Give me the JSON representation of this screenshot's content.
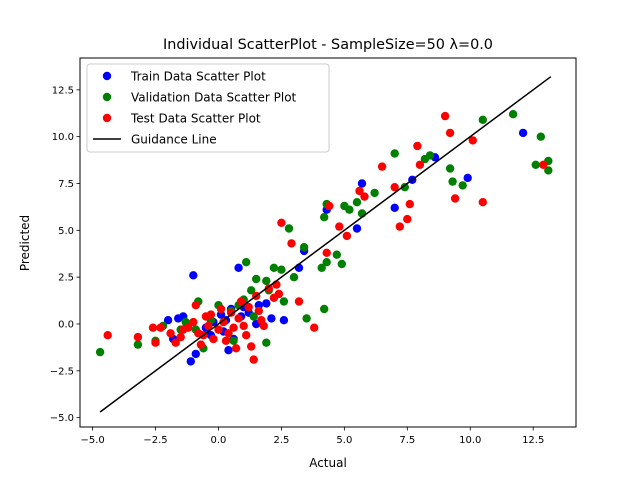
{
  "chart_data": {
    "type": "scatter",
    "title": "Individual ScatterPlot - SampleSize=50 λ=0.0",
    "xlabel": "Actual",
    "ylabel": "Predicted",
    "xlim": [
      -5.5,
      14.2
    ],
    "ylim": [
      -5.5,
      14.2
    ],
    "xticks": [
      -5.0,
      -2.5,
      0.0,
      2.5,
      5.0,
      7.5,
      10.0,
      12.5
    ],
    "yticks": [
      -5.0,
      -2.5,
      0.0,
      2.5,
      5.0,
      7.5,
      10.0,
      12.5
    ],
    "xtick_labels": [
      "−5.0",
      "−2.5",
      "0.0",
      "2.5",
      "5.0",
      "7.5",
      "10.0",
      "12.5"
    ],
    "ytick_labels": [
      "−5.0",
      "−2.5",
      "0.0",
      "2.5",
      "5.0",
      "7.5",
      "10.0",
      "12.5"
    ],
    "grid": false,
    "legend_position": "top-left",
    "series": [
      {
        "name": "Train Data Scatter Plot",
        "color": "#0000ff",
        "kind": "scatter",
        "points": [
          [
            -1.0,
            2.6
          ],
          [
            -1.1,
            -2.0
          ],
          [
            -0.9,
            -1.6
          ],
          [
            -1.4,
            0.4
          ],
          [
            -1.6,
            0.3
          ],
          [
            -1.8,
            -0.8
          ],
          [
            -0.3,
            -0.6
          ],
          [
            0.2,
            -0.4
          ],
          [
            0.4,
            -1.4
          ],
          [
            0.6,
            -0.8
          ],
          [
            0.9,
            0.4
          ],
          [
            0.5,
            0.8
          ],
          [
            1.6,
            1.0
          ],
          [
            1.0,
            0.9
          ],
          [
            0.8,
            3.0
          ],
          [
            1.5,
            0.0
          ],
          [
            2.1,
            0.3
          ],
          [
            2.6,
            0.2
          ],
          [
            3.2,
            3.0
          ],
          [
            3.4,
            3.9
          ],
          [
            4.3,
            6.1
          ],
          [
            5.5,
            5.1
          ],
          [
            5.7,
            7.5
          ],
          [
            7.0,
            6.2
          ],
          [
            7.7,
            7.7
          ],
          [
            8.6,
            8.9
          ],
          [
            9.9,
            7.8
          ],
          [
            12.1,
            10.2
          ],
          [
            -0.2,
            0.1
          ],
          [
            0.1,
            0.5
          ],
          [
            0.3,
            0.2
          ],
          [
            1.2,
            0.6
          ],
          [
            -0.5,
            -0.2
          ],
          [
            1.9,
            1.1
          ],
          [
            -2.0,
            0.2
          ]
        ]
      },
      {
        "name": "Validation Data Scatter Plot",
        "color": "#008000",
        "kind": "scatter",
        "points": [
          [
            -4.7,
            -1.5
          ],
          [
            -3.2,
            -1.1
          ],
          [
            -2.5,
            -0.9
          ],
          [
            -2.2,
            -0.1
          ],
          [
            -1.5,
            -0.3
          ],
          [
            -1.3,
            0.1
          ],
          [
            -0.6,
            -1.3
          ],
          [
            -0.3,
            0.2
          ],
          [
            0.0,
            1.0
          ],
          [
            -0.8,
            1.2
          ],
          [
            0.5,
            0.7
          ],
          [
            0.8,
            1.0
          ],
          [
            1.0,
            1.3
          ],
          [
            1.1,
            3.3
          ],
          [
            1.3,
            1.8
          ],
          [
            1.5,
            2.4
          ],
          [
            1.9,
            2.3
          ],
          [
            2.2,
            3.0
          ],
          [
            2.5,
            2.9
          ],
          [
            2.6,
            1.2
          ],
          [
            2.8,
            5.1
          ],
          [
            3.0,
            2.5
          ],
          [
            3.4,
            4.1
          ],
          [
            3.5,
            0.3
          ],
          [
            4.1,
            3.0
          ],
          [
            4.3,
            3.3
          ],
          [
            4.2,
            5.7
          ],
          [
            4.3,
            6.4
          ],
          [
            4.7,
            3.7
          ],
          [
            4.9,
            3.2
          ],
          [
            5.0,
            6.3
          ],
          [
            5.2,
            6.1
          ],
          [
            5.5,
            6.5
          ],
          [
            5.7,
            5.9
          ],
          [
            6.2,
            7.0
          ],
          [
            7.0,
            9.1
          ],
          [
            7.4,
            7.3
          ],
          [
            8.2,
            8.8
          ],
          [
            8.4,
            9.0
          ],
          [
            9.2,
            8.3
          ],
          [
            9.3,
            7.6
          ],
          [
            9.7,
            7.4
          ],
          [
            10.5,
            10.9
          ],
          [
            11.7,
            11.2
          ],
          [
            12.6,
            8.5
          ],
          [
            12.8,
            10.0
          ],
          [
            13.1,
            8.7
          ],
          [
            13.1,
            8.2
          ],
          [
            1.9,
            -1.0
          ],
          [
            4.2,
            0.8
          ],
          [
            1.4,
            0.4
          ],
          [
            0.6,
            -0.9
          ],
          [
            -0.9,
            -0.3
          ],
          [
            2.0,
            1.8
          ]
        ]
      },
      {
        "name": "Test Data Scatter Plot",
        "color": "#ff0000",
        "kind": "scatter",
        "points": [
          [
            -4.4,
            -0.6
          ],
          [
            -3.2,
            -0.7
          ],
          [
            -2.6,
            -0.2
          ],
          [
            -2.5,
            -1.0
          ],
          [
            -2.3,
            -0.2
          ],
          [
            -1.9,
            -0.5
          ],
          [
            -1.7,
            -1.0
          ],
          [
            -1.5,
            -0.7
          ],
          [
            -1.2,
            -0.2
          ],
          [
            -1.0,
            0.1
          ],
          [
            -0.8,
            -0.5
          ],
          [
            -0.7,
            -1.1
          ],
          [
            -0.5,
            0.4
          ],
          [
            -0.4,
            -0.1
          ],
          [
            -0.2,
            -0.8
          ],
          [
            0.0,
            -0.3
          ],
          [
            0.2,
            0.1
          ],
          [
            0.4,
            -0.5
          ],
          [
            0.5,
            0.6
          ],
          [
            0.6,
            -0.2
          ],
          [
            0.8,
            0.3
          ],
          [
            1.0,
            -0.1
          ],
          [
            1.1,
            -0.6
          ],
          [
            1.3,
            -1.2
          ],
          [
            1.4,
            -1.9
          ],
          [
            1.6,
            0.7
          ],
          [
            1.8,
            -0.1
          ],
          [
            2.0,
            1.9
          ],
          [
            2.2,
            1.4
          ],
          [
            2.4,
            1.6
          ],
          [
            2.5,
            5.4
          ],
          [
            2.9,
            4.3
          ],
          [
            3.2,
            1.2
          ],
          [
            3.8,
            -0.2
          ],
          [
            4.3,
            3.8
          ],
          [
            4.4,
            6.3
          ],
          [
            4.8,
            5.2
          ],
          [
            5.1,
            4.7
          ],
          [
            5.6,
            7.1
          ],
          [
            5.8,
            6.8
          ],
          [
            6.5,
            8.4
          ],
          [
            7.0,
            7.3
          ],
          [
            7.2,
            5.2
          ],
          [
            7.5,
            5.6
          ],
          [
            7.6,
            6.4
          ],
          [
            7.9,
            9.5
          ],
          [
            8.0,
            8.5
          ],
          [
            9.0,
            11.1
          ],
          [
            9.2,
            10.2
          ],
          [
            9.4,
            6.7
          ],
          [
            10.1,
            9.8
          ],
          [
            10.5,
            6.5
          ],
          [
            12.9,
            8.5
          ],
          [
            0.9,
            1.2
          ],
          [
            -0.3,
            0.5
          ],
          [
            0.3,
            -0.9
          ],
          [
            1.7,
            0.2
          ],
          [
            -0.9,
            1.0
          ],
          [
            2.3,
            2.1
          ],
          [
            0.1,
            0.8
          ],
          [
            -0.6,
            -0.6
          ],
          [
            1.2,
            0.9
          ],
          [
            -1.4,
            -0.3
          ],
          [
            0.7,
            -1.3
          ],
          [
            1.5,
            1.5
          ]
        ]
      },
      {
        "name": "Guidance Line",
        "color": "#000000",
        "kind": "line",
        "points": [
          [
            -4.7,
            -4.7
          ],
          [
            13.2,
            13.2
          ]
        ]
      }
    ]
  }
}
